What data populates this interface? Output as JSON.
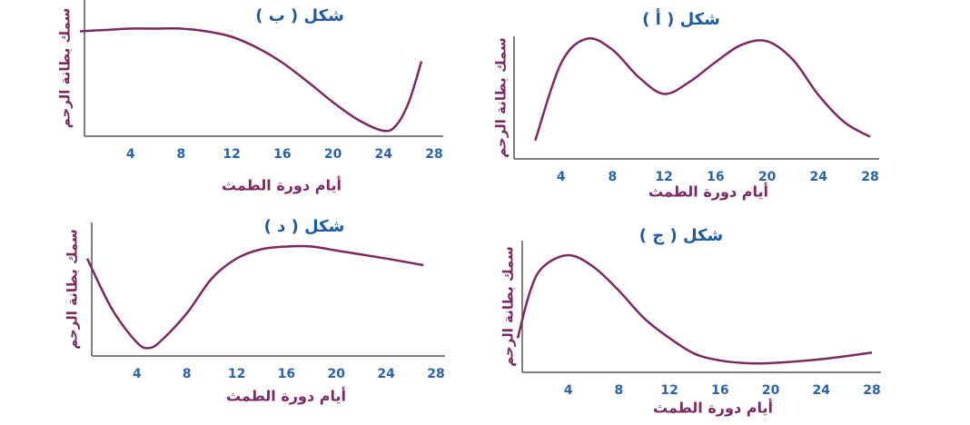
{
  "chart_data": [
    {
      "type": "line",
      "title": "شكل ( ب )",
      "x_label": "أيام دورة الطمث",
      "y_label": "سمك بطانة الرحم",
      "x": [
        0,
        2,
        4,
        6,
        8,
        10,
        12,
        14,
        16,
        18,
        20,
        22,
        24,
        25,
        26,
        27
      ],
      "values": [
        7.7,
        7.8,
        7.9,
        7.9,
        7.9,
        7.7,
        7.3,
        6.5,
        5.4,
        4.0,
        2.5,
        1.2,
        0.4,
        0.8,
        2.5,
        5.5
      ],
      "color": "#7b2a60",
      "xlim": [
        0,
        28
      ],
      "ylim": [
        0,
        10
      ],
      "xticks": [
        4,
        8,
        12,
        16,
        20,
        24,
        28
      ]
    },
    {
      "type": "line",
      "title": "شكل ( أ )",
      "x_label": "أيام دورة الطمث",
      "y_label": "سمك بطانة الرحم",
      "x": [
        2,
        4,
        6,
        8,
        10,
        12,
        14,
        16,
        18,
        20,
        22,
        24,
        26,
        28
      ],
      "values": [
        1.5,
        7.8,
        9.8,
        8.9,
        6.7,
        5.3,
        6.3,
        7.9,
        9.3,
        9.6,
        8.1,
        5.2,
        3.0,
        1.8
      ],
      "color": "#7b2a60",
      "xlim": [
        0,
        28
      ],
      "ylim": [
        0,
        10
      ],
      "xticks": [
        4,
        8,
        12,
        16,
        20,
        24,
        28
      ]
    },
    {
      "type": "line",
      "title": "شكل ( د )",
      "x_label": "أيام دورة الطمث",
      "y_label": "سمك بطانة الرحم",
      "x": [
        0,
        2,
        4,
        5,
        6,
        8,
        10,
        12,
        14,
        16,
        18,
        20,
        24,
        27
      ],
      "values": [
        7.3,
        3.5,
        1.0,
        0.6,
        1.2,
        3.2,
        5.8,
        7.3,
        8.0,
        8.2,
        8.2,
        7.9,
        7.3,
        6.8
      ],
      "color": "#7b2a60",
      "xlim": [
        0,
        28
      ],
      "ylim": [
        0,
        10
      ],
      "xticks": [
        4,
        8,
        12,
        16,
        20,
        24,
        28
      ]
    },
    {
      "type": "line",
      "title": "شكل ( ج )",
      "x_label": "أيام دورة الطمث",
      "y_label": "سمك بطانة الرحم",
      "x": [
        0,
        1,
        2,
        4,
        6,
        8,
        10,
        12,
        14,
        16,
        18,
        20,
        24,
        28
      ],
      "values": [
        2.6,
        6.2,
        8.0,
        8.9,
        8.0,
        6.2,
        4.1,
        2.6,
        1.4,
        0.9,
        0.7,
        0.7,
        1.0,
        1.5
      ],
      "color": "#7b2a60",
      "xlim": [
        0,
        28
      ],
      "ylim": [
        0,
        10
      ],
      "xticks": [
        4,
        8,
        12,
        16,
        20,
        24,
        28
      ]
    }
  ]
}
